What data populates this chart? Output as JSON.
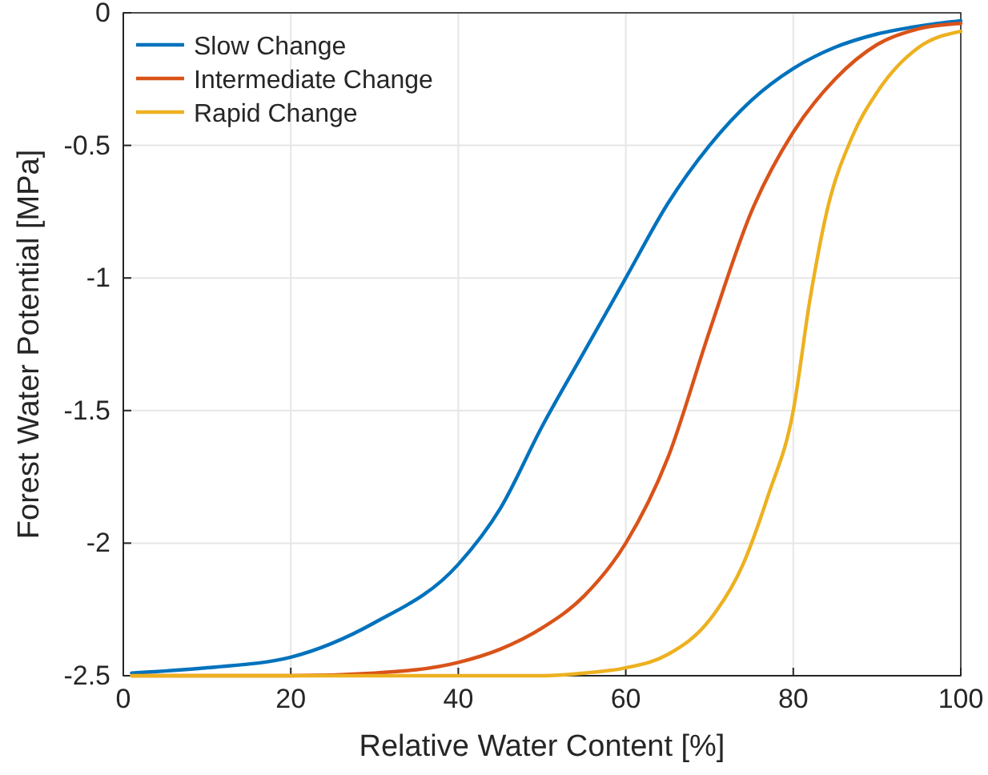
{
  "chart_data": {
    "type": "line",
    "xlabel": "Relative Water Content [%]",
    "ylabel": "Forest Water Potential [MPa]",
    "xlim": [
      0,
      100
    ],
    "xticks": [
      0,
      20,
      40,
      60,
      80,
      100
    ],
    "ylim": [
      -2.5,
      0
    ],
    "yticks": [
      -2.5,
      -2,
      -1.5,
      -1,
      -0.5,
      0
    ],
    "grid": true,
    "legend": "top left",
    "line_style": "solid",
    "marker": "none",
    "series": [
      {
        "name": "Slow Change",
        "color": "#0072bd",
        "x": [
          1,
          10,
          20,
          30,
          40,
          45,
          50,
          55,
          60,
          65,
          70,
          75,
          80,
          85,
          90,
          95,
          100
        ],
        "values": [
          -2.49,
          -2.47,
          -2.43,
          -2.3,
          -2.08,
          -1.87,
          -1.56,
          -1.28,
          -1.0,
          -0.72,
          -0.5,
          -0.33,
          -0.21,
          -0.13,
          -0.08,
          -0.05,
          -0.03
        ]
      },
      {
        "name": "Intermediate Change",
        "color": "#d95319",
        "x": [
          1,
          20,
          30,
          40,
          45,
          50,
          55,
          60,
          65,
          70,
          75,
          80,
          85,
          90,
          95,
          100
        ],
        "values": [
          -2.5,
          -2.5,
          -2.49,
          -2.45,
          -2.4,
          -2.32,
          -2.2,
          -2.0,
          -1.68,
          -1.2,
          -0.75,
          -0.45,
          -0.25,
          -0.12,
          -0.06,
          -0.04
        ]
      },
      {
        "name": "Rapid Change",
        "color": "#edb120",
        "x": [
          1,
          40,
          50,
          55,
          60,
          65,
          70,
          74,
          77,
          80,
          82,
          84,
          87,
          90,
          95,
          100
        ],
        "values": [
          -2.5,
          -2.5,
          -2.5,
          -2.49,
          -2.47,
          -2.42,
          -2.29,
          -2.08,
          -1.82,
          -1.5,
          -1.08,
          -0.75,
          -0.47,
          -0.3,
          -0.13,
          -0.07
        ]
      }
    ]
  }
}
